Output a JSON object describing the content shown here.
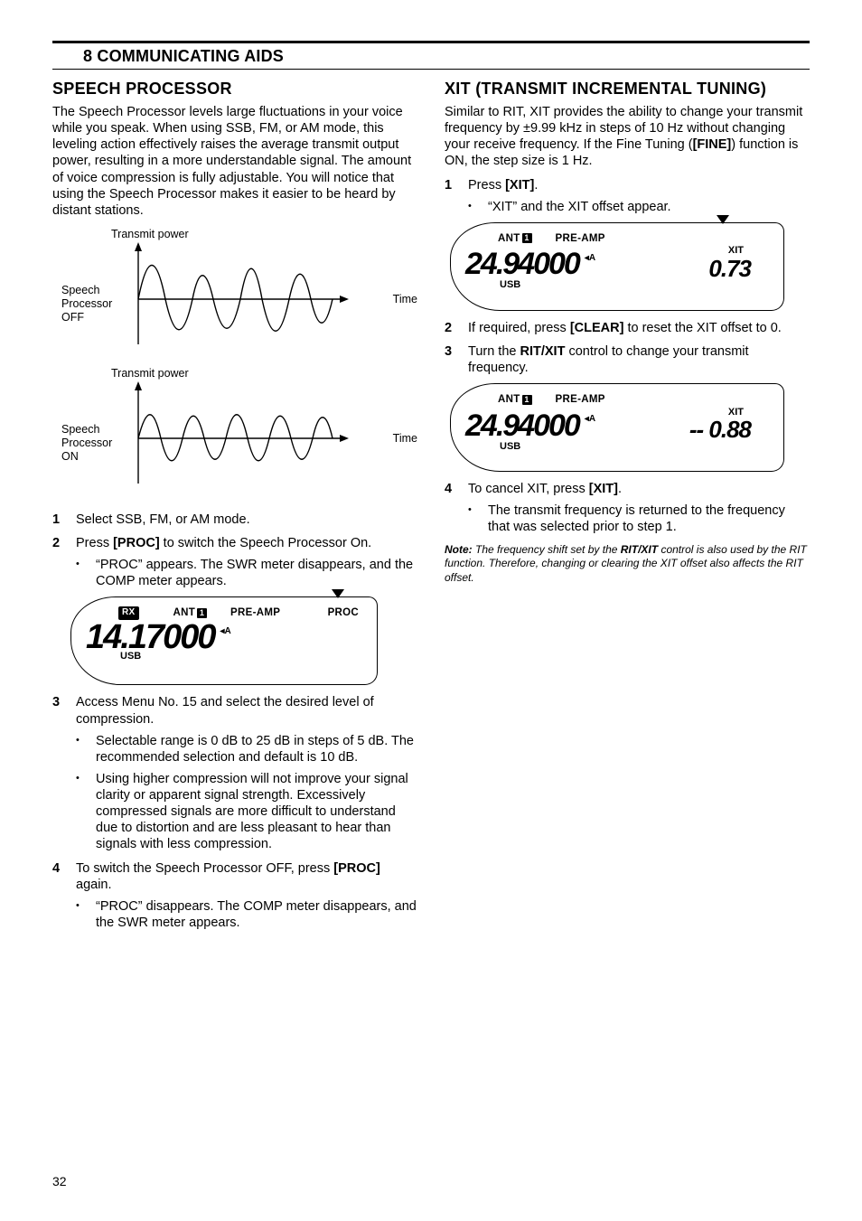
{
  "chapter": "8  COMMUNICATING AIDS",
  "page_number": "32",
  "left": {
    "h": "SPEECH PROCESSOR",
    "intro": "The Speech Processor levels large fluctuations in your voice while you speak.  When using SSB, FM, or AM mode, this leveling action effectively raises the average transmit output power, resulting in a more understandable signal.  The amount of voice compression is fully adjustable.  You will notice that using the Speech Processor makes it easier to be heard by distant stations.",
    "graph": {
      "y_label": "Transmit power",
      "x_label": "Time",
      "off_label": "Speech\nProcessor\nOFF",
      "on_label": "Speech\nProcessor\nON",
      "axis_color": "#000000",
      "line_color": "#000000",
      "line_width": 1.4
    },
    "steps": [
      {
        "n": "1",
        "t": "Select SSB, FM, or AM mode."
      },
      {
        "n": "2",
        "t": "Press [PROC] to switch the Speech Processor On.",
        "bold": "[PROC]",
        "subs": [
          "“PROC” appears.  The SWR meter disappears, and the COMP meter appears."
        ]
      },
      {
        "n": "3",
        "t": "Access Menu No. 15 and select the desired level of compression.",
        "subs": [
          "Selectable range is 0 dB to 25 dB in steps of 5 dB.  The recommended selection and default is 10 dB.",
          "Using higher compression will not improve your signal clarity or apparent signal strength.  Excessively compressed signals are more difficult to understand due to distortion and are less pleasant to hear than signals with less compression."
        ]
      },
      {
        "n": "4",
        "t": "To switch the Speech Processor OFF, press [PROC] again.",
        "bold": "[PROC]",
        "subs": [
          "“PROC” disappears.  The COMP meter disappears, and the SWR meter appears."
        ]
      }
    ],
    "lcd": {
      "rx": "RX",
      "ant": "ANT",
      "ant_num": "1",
      "preamp": "PRE-AMP",
      "proc": "PROC",
      "freq": "14.17000",
      "vfo": "◂A",
      "usb": "USB"
    }
  },
  "right": {
    "h": "XIT (TRANSMIT INCREMENTAL TUNING)",
    "intro_parts": {
      "a": "Similar to RIT, XIT provides the ability to change your transmit frequency by ±9.99 kHz in steps of 10 Hz without changing your receive frequency.  If the Fine Tuning (",
      "b": "[FINE]",
      "c": ") function is ON, the step size is 1 Hz."
    },
    "steps1": [
      {
        "n": "1",
        "t": "Press [XIT].",
        "bold": "[XIT]",
        "subs": [
          "“XIT” and the XIT offset appear."
        ]
      }
    ],
    "lcd1": {
      "ant": "ANT",
      "ant_num": "1",
      "preamp": "PRE-AMP",
      "freq": "24.94000",
      "vfo": "◂A",
      "usb": "USB",
      "xit_label": "XIT",
      "xit_val": "0.73"
    },
    "steps2": [
      {
        "n": "2",
        "t": "If required, press [CLEAR] to reset the XIT offset to 0.",
        "bold": "[CLEAR]"
      },
      {
        "n": "3",
        "t": "Turn the RIT/XIT control to change your transmit frequency.",
        "bold": "RIT/XIT"
      }
    ],
    "lcd2": {
      "ant": "ANT",
      "ant_num": "1",
      "preamp": "PRE-AMP",
      "freq": "24.94000",
      "vfo": "◂A",
      "usb": "USB",
      "xit_label": "XIT",
      "xit_val": "-- 0.88"
    },
    "steps3": [
      {
        "n": "4",
        "t": "To cancel XIT, press [XIT].",
        "bold": "[XIT]",
        "subs": [
          "The transmit frequency is returned to the frequency that was selected prior to step 1."
        ]
      }
    ],
    "note": {
      "label": "Note:",
      "a": "The frequency shift set by the ",
      "b": "RIT/XIT",
      "c": " control is also used by the RIT function.  Therefore, changing or clearing the XIT offset also affects the RIT offset."
    }
  }
}
